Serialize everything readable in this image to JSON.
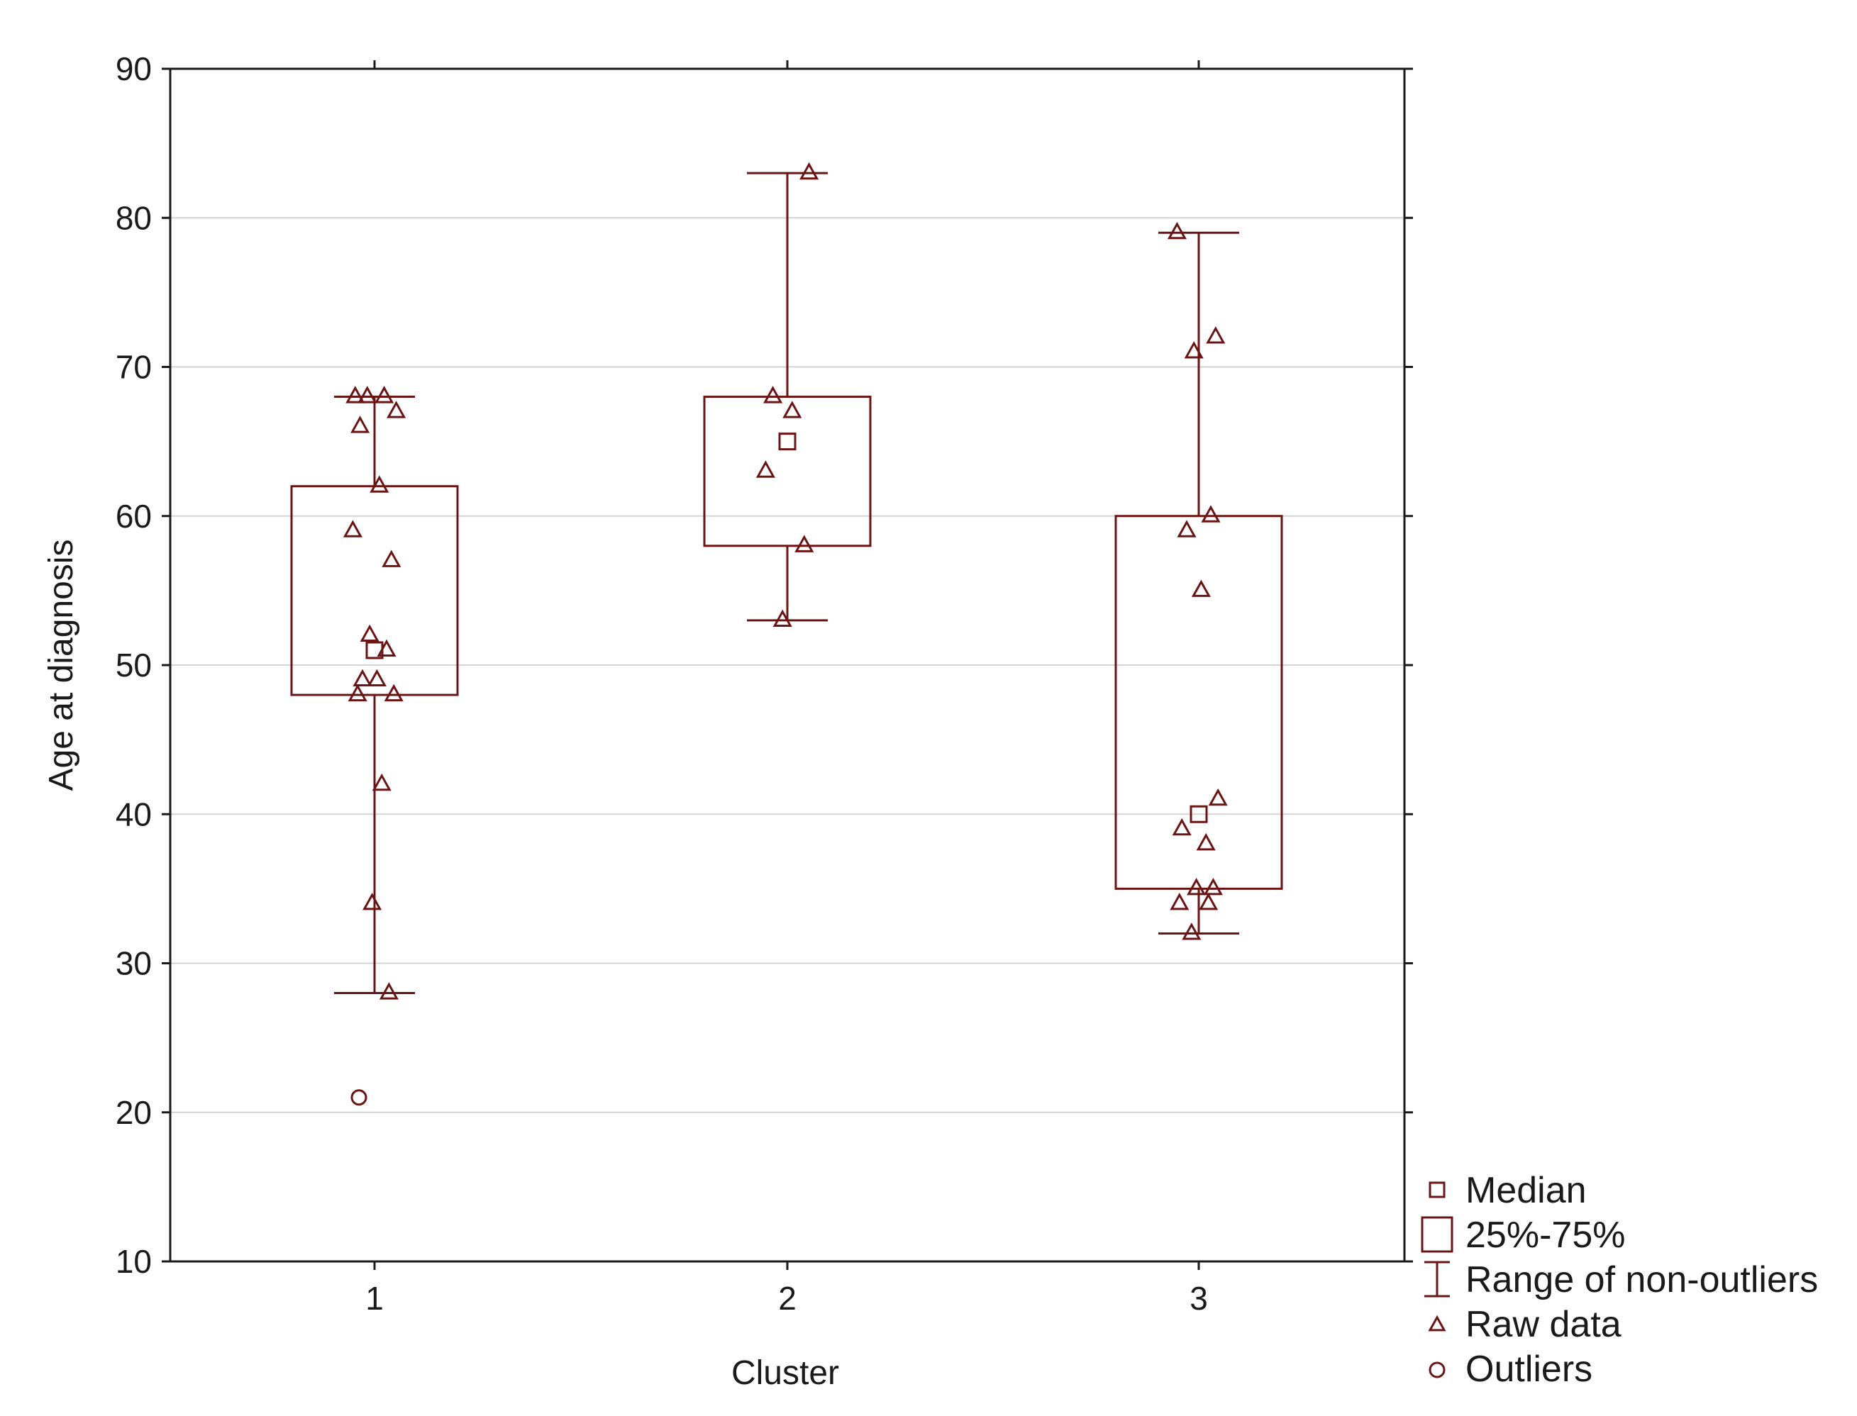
{
  "chart_data": {
    "type": "box",
    "xlabel": "Cluster",
    "ylabel": "Age at diagnosis",
    "ylim": [
      10,
      90
    ],
    "yticks": [
      10,
      20,
      30,
      40,
      50,
      60,
      70,
      80,
      90
    ],
    "grid": "horizontal",
    "legend_position": "bottom-right, outside plot",
    "colors": {
      "marks": "#6b1414",
      "grid": "#d4d4d4",
      "frame": "#1a1a1a"
    },
    "categories": [
      "1",
      "2",
      "3"
    ],
    "boxes": [
      {
        "category": "1",
        "median": 51,
        "q1": 48,
        "q3": 62,
        "whisker_low": 28,
        "whisker_high": 68,
        "raw_data": [
          68,
          68,
          68,
          67,
          66,
          62,
          59,
          57,
          52,
          51,
          49,
          49,
          48,
          48,
          42,
          34,
          28
        ],
        "outliers": [
          21
        ]
      },
      {
        "category": "2",
        "median": 65,
        "q1": 58,
        "q3": 68,
        "whisker_low": 53,
        "whisker_high": 83,
        "raw_data": [
          83,
          68,
          67,
          63,
          58,
          53
        ],
        "outliers": []
      },
      {
        "category": "3",
        "median": 40,
        "q1": 35,
        "q3": 60,
        "whisker_low": 32,
        "whisker_high": 79,
        "raw_data": [
          79,
          72,
          71,
          60,
          59,
          55,
          41,
          39,
          38,
          35,
          35,
          34,
          34,
          32
        ],
        "outliers": []
      }
    ],
    "legend": [
      {
        "key": "median",
        "label": "Median"
      },
      {
        "key": "box",
        "label": "25%-75%"
      },
      {
        "key": "range",
        "label": "Range of non-outliers"
      },
      {
        "key": "raw",
        "label": "Raw data"
      },
      {
        "key": "outlier",
        "label": "Outliers"
      }
    ]
  }
}
